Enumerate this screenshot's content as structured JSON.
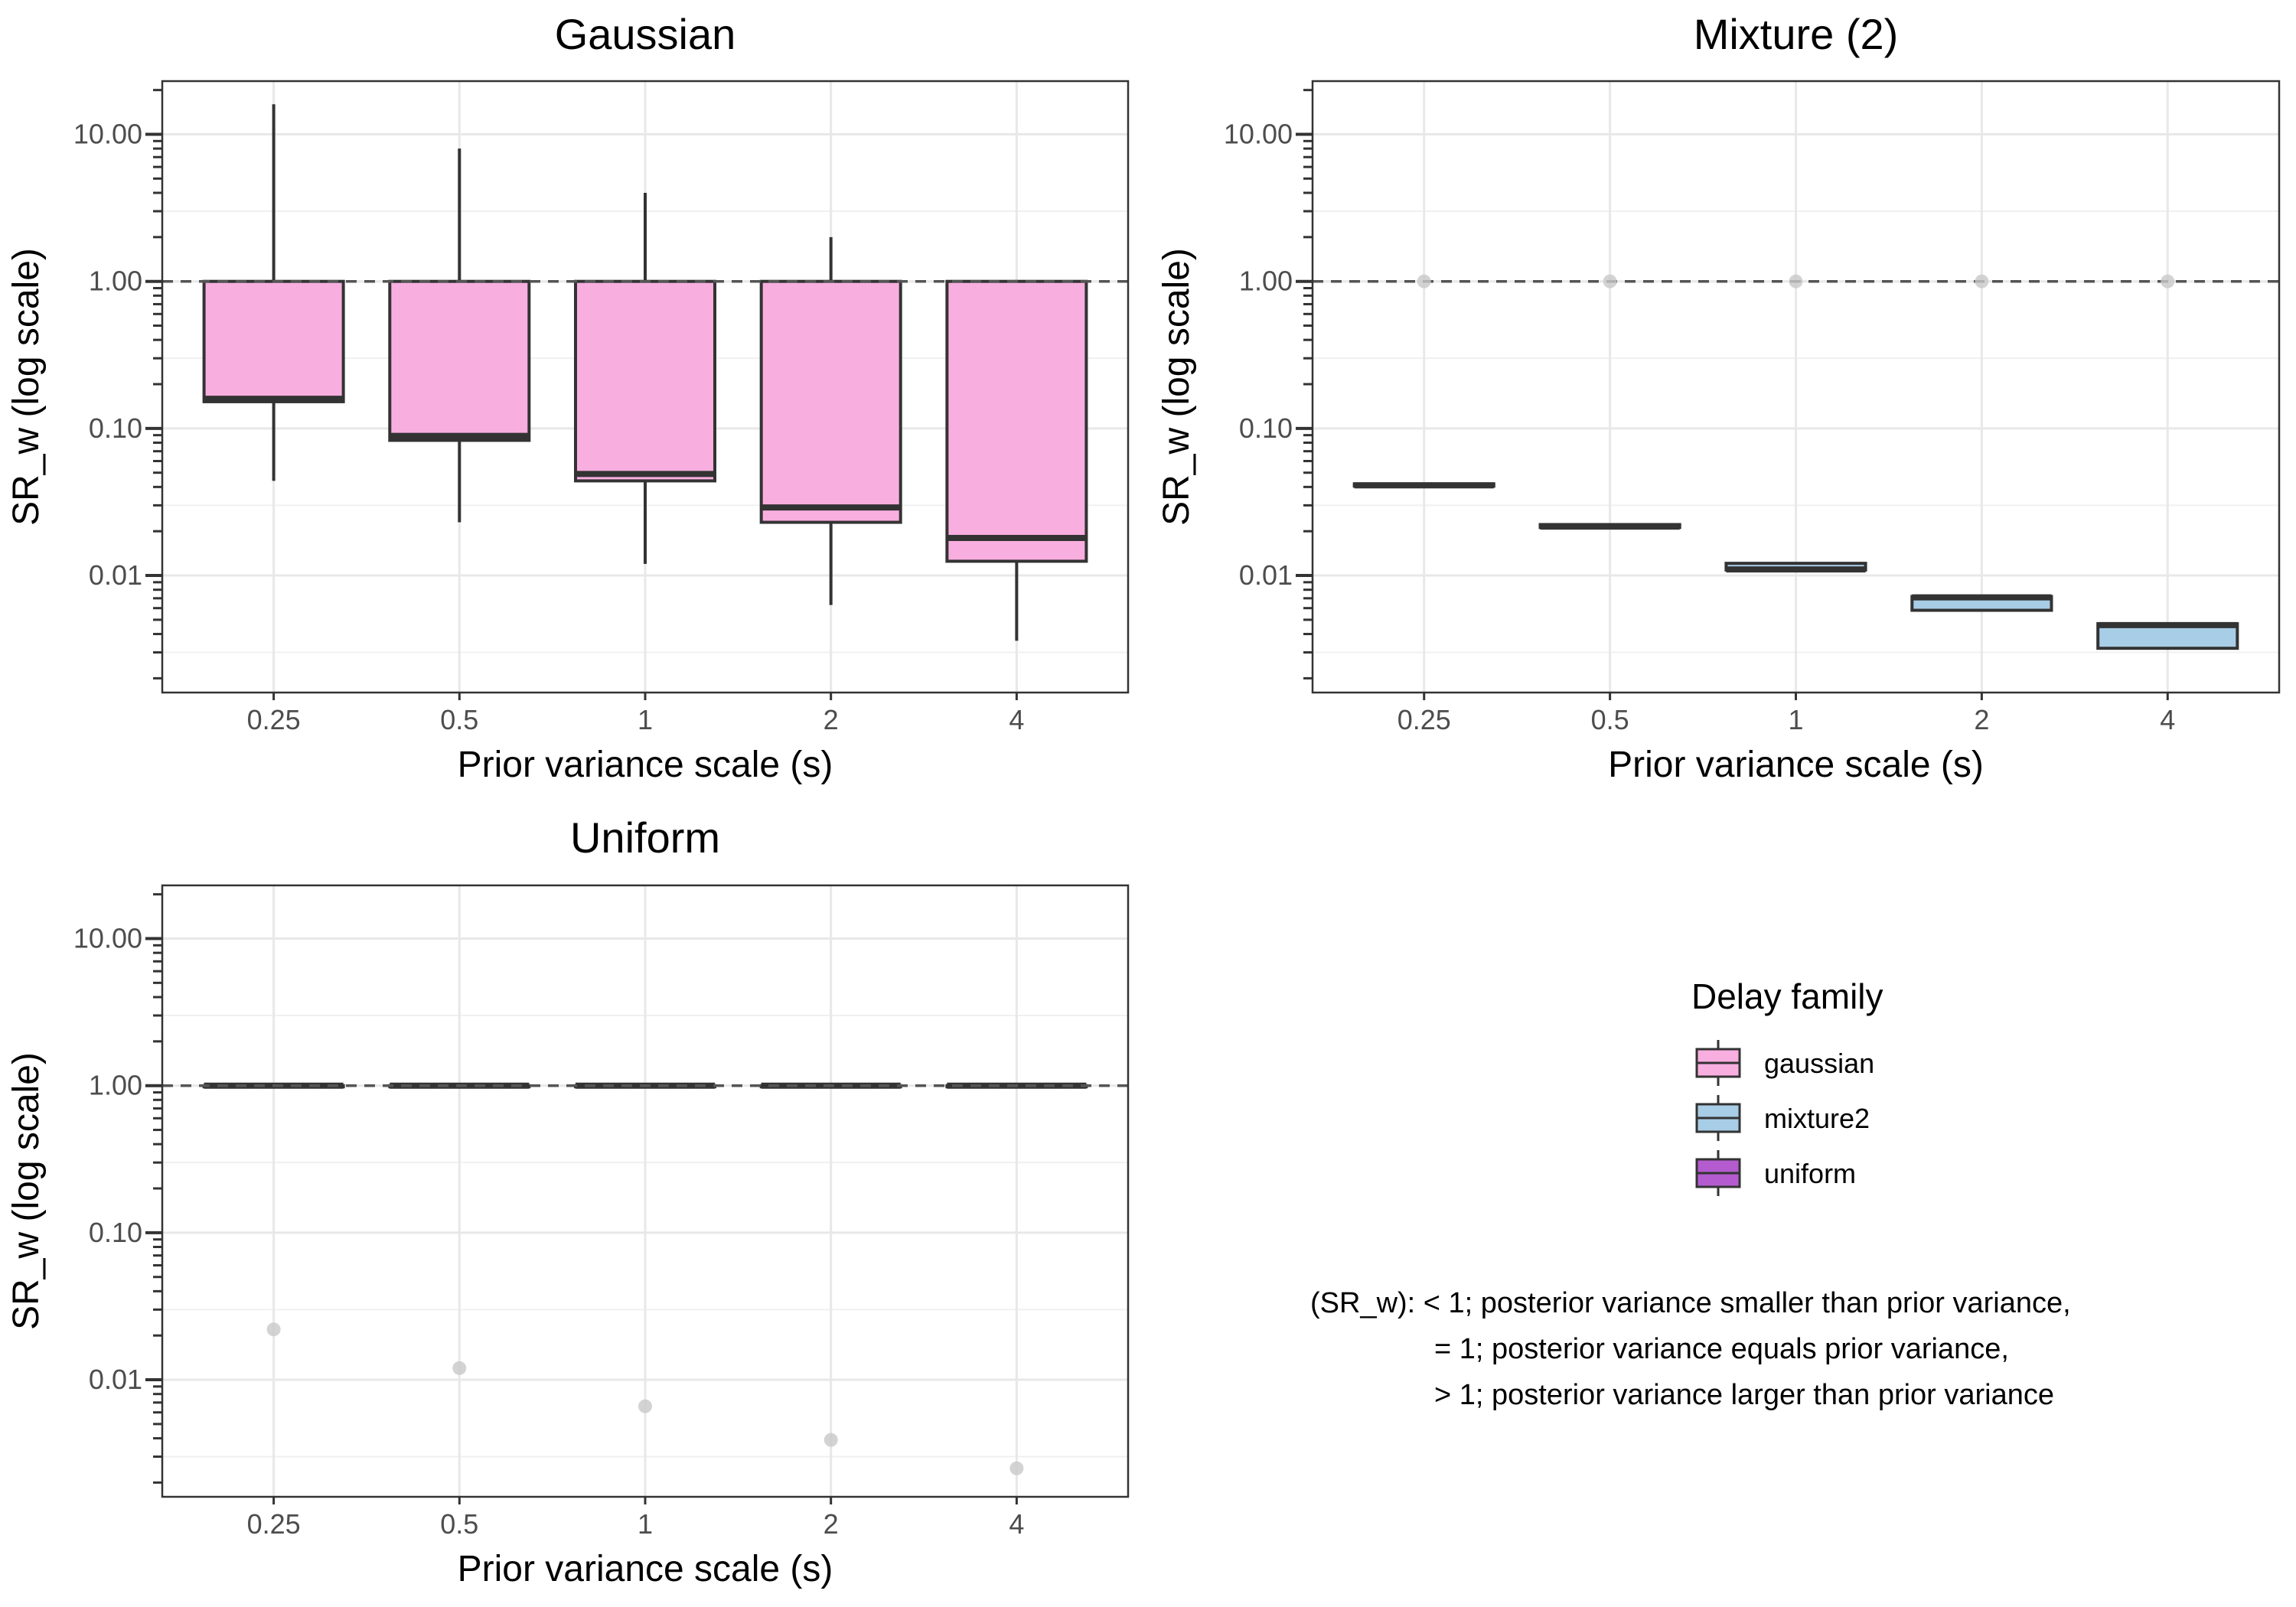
{
  "chart_data": {
    "type": "box",
    "legend": {
      "title": "Delay family",
      "placement": "right",
      "entries": [
        {
          "label": "gaussian",
          "color": "#f9aee0"
        },
        {
          "label": "mixture2",
          "color": "#a8cde6"
        },
        {
          "label": "uniform",
          "color": "#b45ccf"
        }
      ]
    },
    "note": [
      "(SR_w): < 1; posterior variance smaller than prior variance,",
      "= 1; posterior variance equals prior variance,",
      "> 1; posterior variance larger than prior variance"
    ],
    "panels": [
      {
        "title": "Gaussian",
        "xlabel": "Prior variance scale (s)",
        "ylabel": "SR_w (log scale)",
        "yscale": "log10",
        "ylim": [
          0.0016,
          23
        ],
        "yticks": [
          0.01,
          0.1,
          1,
          10
        ],
        "ytick_labels": [
          "0.01",
          "0.10",
          "1.00",
          "10.00"
        ],
        "categories": [
          "0.25",
          "0.5",
          "1",
          "2",
          "4"
        ],
        "reference_line": 1,
        "grid": true,
        "series": [
          {
            "name": "gaussian",
            "color": "#f9aee0",
            "boxes": [
              {
                "lower_whisker": 0.044,
                "q1": 0.152,
                "median": 0.159,
                "q3": 1.0,
                "upper_whisker": 16.0
              },
              {
                "lower_whisker": 0.023,
                "q1": 0.083,
                "median": 0.089,
                "q3": 1.0,
                "upper_whisker": 8.0
              },
              {
                "lower_whisker": 0.012,
                "q1": 0.044,
                "median": 0.049,
                "q3": 1.0,
                "upper_whisker": 4.0
              },
              {
                "lower_whisker": 0.0063,
                "q1": 0.023,
                "median": 0.029,
                "q3": 1.0,
                "upper_whisker": 2.0
              },
              {
                "lower_whisker": 0.0036,
                "q1": 0.0125,
                "median": 0.018,
                "q3": 1.0,
                "upper_whisker": 1.0
              }
            ],
            "outliers": [
              [],
              [],
              [],
              [],
              []
            ]
          }
        ]
      },
      {
        "title": "Mixture (2)",
        "xlabel": "Prior variance scale (s)",
        "ylabel": "SR_w (log scale)",
        "yscale": "log10",
        "ylim": [
          0.0016,
          23
        ],
        "yticks": [
          0.01,
          0.1,
          1,
          10
        ],
        "ytick_labels": [
          "0.01",
          "0.10",
          "1.00",
          "10.00"
        ],
        "categories": [
          "0.25",
          "0.5",
          "1",
          "2",
          "4"
        ],
        "reference_line": 1,
        "grid": true,
        "series": [
          {
            "name": "mixture2",
            "color": "#a8cde6",
            "boxes": [
              {
                "lower_whisker": 0.0405,
                "q1": 0.0405,
                "median": 0.041,
                "q3": 0.042,
                "upper_whisker": 0.042
              },
              {
                "lower_whisker": 0.0212,
                "q1": 0.0212,
                "median": 0.0215,
                "q3": 0.0222,
                "upper_whisker": 0.0222
              },
              {
                "lower_whisker": 0.0109,
                "q1": 0.0109,
                "median": 0.011,
                "q3": 0.0121,
                "upper_whisker": 0.0121
              },
              {
                "lower_whisker": 0.0058,
                "q1": 0.0058,
                "median": 0.0071,
                "q3": 0.0072,
                "upper_whisker": 0.0072
              },
              {
                "lower_whisker": 0.0032,
                "q1": 0.0032,
                "median": 0.0046,
                "q3": 0.0047,
                "upper_whisker": 0.0047
              }
            ],
            "outliers": [
              [
                1.0
              ],
              [
                1.0
              ],
              [
                1.0
              ],
              [
                1.0
              ],
              [
                1.0
              ]
            ]
          }
        ]
      },
      {
        "title": "Uniform",
        "xlabel": "Prior variance scale (s)",
        "ylabel": "SR_w (log scale)",
        "yscale": "log10",
        "ylim": [
          0.0016,
          23
        ],
        "yticks": [
          0.01,
          0.1,
          1,
          10
        ],
        "ytick_labels": [
          "0.01",
          "0.10",
          "1.00",
          "10.00"
        ],
        "categories": [
          "0.25",
          "0.5",
          "1",
          "2",
          "4"
        ],
        "reference_line": 1,
        "grid": true,
        "series": [
          {
            "name": "uniform",
            "color": "#b45ccf",
            "boxes": [
              {
                "lower_whisker": 1.0,
                "q1": 1.0,
                "median": 1.0,
                "q3": 1.0,
                "upper_whisker": 1.0
              },
              {
                "lower_whisker": 1.0,
                "q1": 1.0,
                "median": 1.0,
                "q3": 1.0,
                "upper_whisker": 1.0
              },
              {
                "lower_whisker": 1.0,
                "q1": 1.0,
                "median": 1.0,
                "q3": 1.0,
                "upper_whisker": 1.0
              },
              {
                "lower_whisker": 1.0,
                "q1": 1.0,
                "median": 1.0,
                "q3": 1.0,
                "upper_whisker": 1.0
              },
              {
                "lower_whisker": 1.0,
                "q1": 1.0,
                "median": 1.0,
                "q3": 1.0,
                "upper_whisker": 1.0
              }
            ],
            "outliers": [
              [
                0.022
              ],
              [
                0.012
              ],
              [
                0.0066
              ],
              [
                0.0039
              ],
              [
                0.0025
              ]
            ]
          }
        ]
      }
    ]
  }
}
